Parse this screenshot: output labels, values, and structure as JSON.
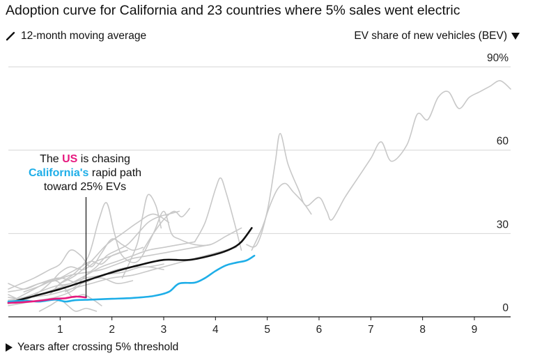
{
  "chart_data": {
    "type": "line",
    "title": "Adoption curve for California and 23 countries where 5% sales went electric",
    "legend_note": "12-month moving average",
    "ylabel": "EV share of new vehicles (BEV)",
    "xlabel": "Years after crossing 5% threshold",
    "xlim": [
      0,
      9.7
    ],
    "ylim": [
      0,
      90
    ],
    "x_ticks": [
      "1",
      "2",
      "3",
      "4",
      "5",
      "6",
      "7",
      "8",
      "9"
    ],
    "y_ticks": [
      "0",
      "30",
      "60",
      "90%"
    ],
    "grid": "horizontal",
    "annotation": {
      "line1_prefix": "The ",
      "line1_highlight": "US",
      "line1_suffix": " is chasing",
      "line2_highlight": "California's",
      "line2_suffix": " rapid path",
      "line3": "toward 25% EVs",
      "x": 1.5
    },
    "colors": {
      "us": "#e6197f",
      "california": "#1eaee8",
      "highlight": "#111111",
      "countries": "#c8c8c8",
      "grid": "#d6d6d6"
    },
    "series": [
      {
        "name": "US",
        "color": "#e6197f",
        "x": [
          0,
          0.3,
          0.6,
          0.9,
          1.1,
          1.3,
          1.5
        ],
        "y": [
          5,
          5.3,
          5.8,
          6.5,
          6.7,
          7.3,
          7
        ]
      },
      {
        "name": "California",
        "color": "#1eaee8",
        "x": [
          0,
          0.3,
          0.6,
          0.9,
          1.1,
          1.3,
          1.6,
          2.0,
          2.4,
          2.8,
          3.1,
          3.3,
          3.6,
          3.8,
          4.0,
          4.2,
          4.4,
          4.6,
          4.75
        ],
        "y": [
          5.5,
          5.8,
          5.5,
          6.2,
          5.5,
          6.0,
          6.2,
          6.5,
          6.8,
          7.5,
          9.0,
          12.0,
          12.3,
          14.0,
          16.5,
          18.5,
          19.5,
          20.3,
          22
        ]
      },
      {
        "name": "",
        "color": "#111111",
        "x": [
          0,
          0.5,
          1.0,
          1.5,
          2.0,
          2.5,
          3.0,
          3.5,
          4.0,
          4.3,
          4.5,
          4.7
        ],
        "y": [
          5,
          7.5,
          10,
          13,
          16,
          18.5,
          20.5,
          20.5,
          22.5,
          24.5,
          27,
          32
        ]
      },
      {
        "name": "",
        "color": "#c8c8c8",
        "x": [
          4.6,
          4.8,
          5.0,
          5.15,
          5.25,
          5.4,
          5.6,
          5.75,
          6.0,
          6.15,
          6.25,
          6.5,
          6.75,
          7.0,
          7.2,
          7.4,
          7.7,
          7.9,
          8.1,
          8.3,
          8.5,
          8.7,
          8.9,
          9.1,
          9.3,
          9.5,
          9.7
        ],
        "y": [
          26,
          26,
          38,
          55,
          66,
          55,
          46,
          40,
          43,
          38,
          35,
          43,
          50,
          57,
          63,
          56,
          62,
          73,
          71,
          79,
          81,
          75,
          79,
          81,
          83,
          85,
          82
        ]
      },
      {
        "name": "",
        "color": "#c8c8c8",
        "x": [
          4.7,
          4.9,
          5.05,
          5.2,
          5.35,
          5.5,
          5.7,
          5.85
        ],
        "y": [
          24,
          32,
          40,
          46,
          48,
          45,
          41,
          37
        ]
      },
      {
        "name": "",
        "color": "#c8c8c8",
        "x": [
          3.6,
          3.8,
          4.0,
          4.1,
          4.2,
          4.35,
          4.5
        ],
        "y": [
          27,
          34,
          46,
          50,
          45,
          35,
          24
        ]
      },
      {
        "name": "",
        "color": "#c8c8c8",
        "x": [
          2.2,
          2.35,
          2.5,
          2.6,
          2.7,
          2.85,
          2.95
        ],
        "y": [
          14,
          20,
          27,
          37,
          44,
          40,
          32
        ]
      },
      {
        "name": "",
        "color": "#c8c8c8",
        "x": [
          0.8,
          1.0,
          1.3,
          1.55,
          1.75,
          1.9,
          2.05,
          2.2,
          2.5,
          2.8,
          3.0,
          3.15,
          3.3,
          3.6,
          3.9,
          4.2,
          4.5
        ],
        "y": [
          8,
          12,
          16,
          22,
          35,
          41,
          30,
          22,
          20,
          30,
          38,
          30,
          28,
          26,
          26,
          29,
          32
        ]
      },
      {
        "name": "",
        "color": "#c8c8c8",
        "x": [
          1.1,
          1.3,
          1.5,
          1.7,
          1.9,
          2.1,
          2.3,
          2.5,
          2.7,
          2.9,
          3.1,
          3.3
        ],
        "y": [
          9,
          11,
          15,
          18,
          22,
          24,
          26,
          30,
          34,
          36,
          37,
          38
        ]
      },
      {
        "name": "",
        "color": "#c8c8c8",
        "x": [
          0,
          0.3,
          0.6,
          0.9,
          1.2,
          1.5,
          1.8,
          2.1,
          2.4,
          2.7,
          3.0,
          3.3,
          3.6
        ],
        "y": [
          7,
          6.5,
          8,
          10,
          12,
          15,
          18,
          20,
          22,
          24,
          25,
          26,
          27
        ]
      },
      {
        "name": "",
        "color": "#c8c8c8",
        "x": [
          0,
          0.25,
          0.5,
          0.8,
          1.0,
          1.2,
          1.4,
          1.6,
          1.8,
          2.0,
          2.2,
          2.4,
          2.6
        ],
        "y": [
          10,
          12,
          14,
          17,
          19,
          24,
          22,
          18,
          23,
          28,
          26,
          24,
          25
        ]
      },
      {
        "name": "",
        "color": "#c8c8c8",
        "x": [
          0,
          0.3,
          0.6,
          0.85,
          1.0,
          1.2,
          1.45,
          1.7,
          2.0,
          2.3
        ],
        "y": [
          8,
          6,
          9,
          13,
          16,
          18,
          17,
          20,
          22,
          24
        ]
      },
      {
        "name": "",
        "color": "#c8c8c8",
        "x": [
          0,
          0.3,
          0.6,
          0.9,
          1.2,
          1.5,
          1.8,
          2.1,
          2.4
        ],
        "y": [
          4,
          5,
          6,
          7,
          9,
          13,
          14,
          12,
          13
        ]
      },
      {
        "name": "",
        "color": "#c8c8c8",
        "x": [
          0,
          0.3,
          0.6,
          0.9,
          1.2,
          1.5,
          1.8,
          2.1,
          2.4,
          2.7,
          3.0
        ],
        "y": [
          6,
          7,
          9,
          11,
          12,
          14,
          15,
          17,
          18,
          18,
          19
        ]
      },
      {
        "name": "",
        "color": "#c8c8c8",
        "x": [
          0,
          0.3,
          0.6,
          0.8,
          1.0,
          1.2,
          1.4,
          1.6,
          1.8,
          2.0,
          2.3
        ],
        "y": [
          5,
          8,
          11,
          13,
          14,
          16,
          18,
          20,
          19,
          22,
          24
        ]
      },
      {
        "name": "",
        "color": "#c8c8c8",
        "x": [
          0.3,
          0.6,
          0.9,
          1.1,
          1.25,
          1.45,
          1.65,
          1.8
        ],
        "y": [
          9,
          11,
          13,
          10,
          7,
          8,
          6,
          4
        ]
      },
      {
        "name": "",
        "color": "#c8c8c8",
        "x": [
          0.6,
          0.8,
          1.0,
          1.15,
          1.3,
          1.5,
          1.7
        ],
        "y": [
          2,
          4,
          6,
          4,
          2,
          3,
          2
        ]
      },
      {
        "name": "",
        "color": "#c8c8c8",
        "x": [
          0,
          0.3,
          0.6,
          0.9,
          1.2,
          1.5,
          1.8,
          2.1,
          2.4,
          2.7,
          3.0,
          3.3,
          3.6,
          3.9
        ],
        "y": [
          9,
          10,
          12,
          13,
          15,
          16,
          17,
          19,
          21,
          22,
          23,
          24,
          25,
          26
        ]
      },
      {
        "name": "",
        "color": "#c8c8c8",
        "x": [
          0,
          0.4,
          0.8,
          1.2,
          1.6,
          2.0,
          2.4,
          2.8,
          3.2,
          3.6,
          4.0,
          4.4
        ],
        "y": [
          6,
          7,
          8,
          10,
          12,
          14,
          15,
          17,
          19,
          21,
          23,
          25
        ]
      },
      {
        "name": "",
        "color": "#c8c8c8",
        "x": [
          0,
          0.3,
          0.6,
          1.0,
          1.4,
          1.8,
          2.2,
          2.6,
          3.0
        ],
        "y": [
          12,
          10,
          12,
          14,
          12,
          15,
          16,
          18,
          17
        ]
      },
      {
        "name": "",
        "color": "#c8c8c8",
        "x": [
          2.6,
          2.8,
          3.0,
          3.2,
          3.35,
          3.5
        ],
        "y": [
          24,
          30,
          35,
          38,
          36,
          39
        ]
      },
      {
        "name": "",
        "color": "#c8c8c8",
        "x": [
          1.0,
          1.3,
          1.6,
          1.9,
          2.2,
          2.5,
          2.8,
          3.1
        ],
        "y": [
          12,
          15,
          20,
          26,
          30,
          34,
          37,
          34
        ]
      }
    ]
  }
}
